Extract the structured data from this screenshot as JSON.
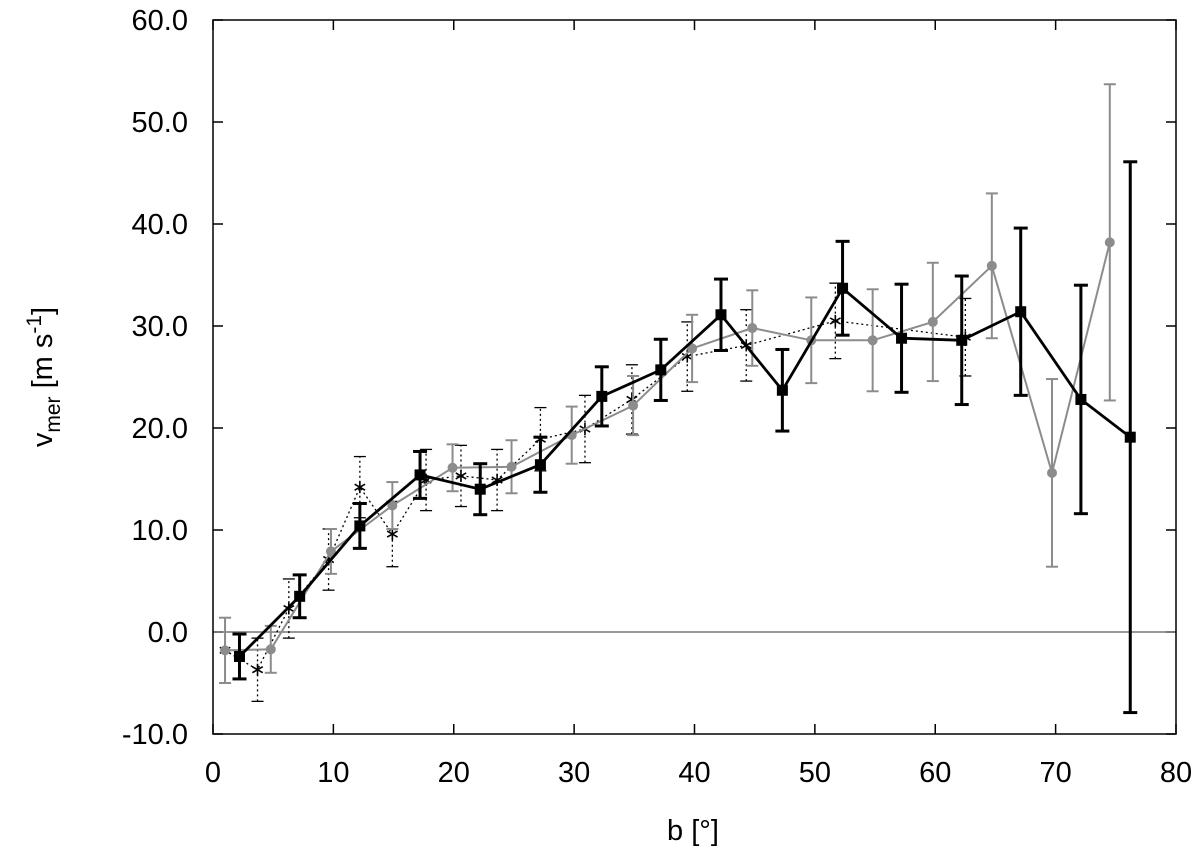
{
  "chart_data": {
    "type": "line",
    "xlabel": "b [°]",
    "ylabel": {
      "base": "v",
      "base_sub": "mer",
      "unit_prefix": " [m s",
      "unit_sup": "-1",
      "unit_suffix": "]"
    },
    "xlim": [
      0,
      80
    ],
    "ylim": [
      -10,
      60
    ],
    "x_ticks": [
      0,
      10,
      20,
      30,
      40,
      50,
      60,
      70,
      80
    ],
    "y_ticks": [
      -10,
      0,
      10,
      20,
      30,
      40,
      50,
      60
    ],
    "y_tick_labels": [
      "-10.0",
      "0.0",
      "10.0",
      "20.0",
      "30.0",
      "40.0",
      "50.0",
      "60.0"
    ],
    "zero_line": true,
    "grid": false,
    "series": [
      {
        "style": "asterisk-dotted",
        "color": "#000000",
        "x": [
          1.0,
          3.7,
          6.3,
          9.6,
          12.2,
          14.9,
          17.7,
          20.6,
          23.6,
          27.2,
          30.9,
          34.8,
          39.4,
          44.3,
          51.7,
          62.5
        ],
        "y": [
          -1.8,
          -3.7,
          2.3,
          7.1,
          14.2,
          9.6,
          14.9,
          15.3,
          14.9,
          18.9,
          19.9,
          22.8,
          27.0,
          28.1,
          30.5,
          28.9
        ],
        "err": [
          3.2,
          3.1,
          2.9,
          3.0,
          3.0,
          3.2,
          3.0,
          3.0,
          3.0,
          3.1,
          3.3,
          3.4,
          3.4,
          3.5,
          3.7,
          3.8
        ]
      },
      {
        "style": "gray-circle",
        "color": "#8c8c8c",
        "x": [
          1.0,
          4.8,
          9.8,
          14.9,
          19.9,
          24.8,
          29.8,
          34.9,
          39.8,
          44.8,
          49.7,
          54.8,
          59.8,
          64.7,
          69.7,
          74.5
        ],
        "y": [
          -1.8,
          -1.7,
          7.9,
          12.4,
          16.1,
          16.2,
          19.3,
          22.2,
          27.8,
          29.8,
          28.6,
          28.6,
          30.4,
          35.9,
          15.6,
          38.2
        ],
        "err": [
          3.2,
          2.3,
          2.2,
          2.3,
          2.3,
          2.6,
          2.8,
          2.9,
          3.3,
          3.7,
          4.2,
          5.0,
          5.8,
          7.1,
          9.2,
          15.5
        ]
      },
      {
        "style": "black-square",
        "color": "#000000",
        "x": [
          2.2,
          7.2,
          12.2,
          17.2,
          22.2,
          27.2,
          32.3,
          37.2,
          42.2,
          47.3,
          52.3,
          57.2,
          62.2,
          67.1,
          72.1,
          76.2
        ],
        "y": [
          -2.4,
          3.5,
          10.4,
          15.4,
          14.0,
          16.4,
          23.1,
          25.7,
          31.1,
          23.7,
          33.7,
          28.8,
          28.6,
          31.4,
          22.8,
          19.1
        ],
        "err": [
          2.2,
          2.1,
          2.2,
          2.3,
          2.5,
          2.7,
          2.9,
          3.0,
          3.5,
          4.0,
          4.6,
          5.3,
          6.3,
          8.2,
          11.2,
          27.0
        ]
      }
    ]
  }
}
